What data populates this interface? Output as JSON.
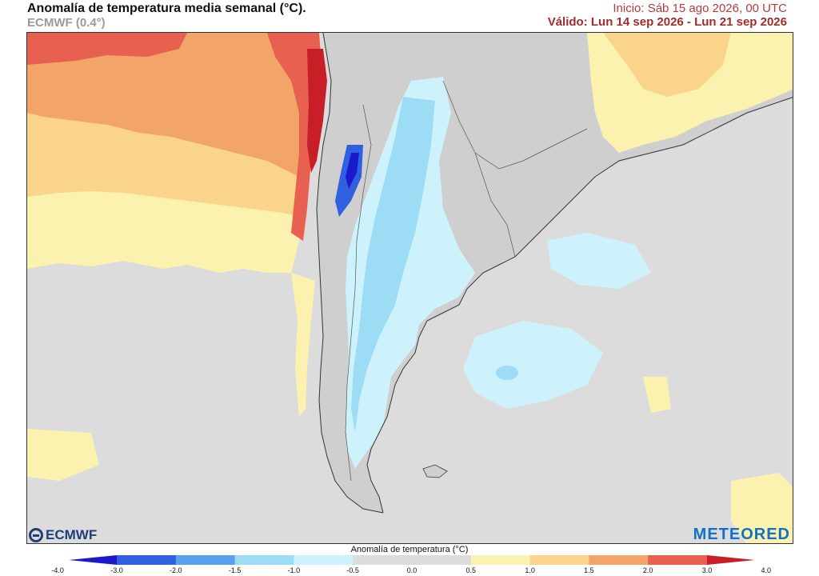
{
  "header": {
    "title": "Anomalía de temperatura media semanal (°C).",
    "model": "ECMWF (0.4°)",
    "start": "Inicio: Sáb 15 ago 2026, 00 UTC",
    "valid": "Válido: Lun 14 sep 2026 - Lun 21 sep 2026"
  },
  "logos": {
    "left": "ECMWF",
    "right": "METEORED"
  },
  "legend": {
    "title": "Anomalía de temperatura (°C)",
    "ticks": [
      "-4.0",
      "-3.0",
      "-2.0",
      "-1.5",
      "-1.0",
      "-0.5",
      "0.0",
      "0.5",
      "1.0",
      "1.5",
      "2.0",
      "3.0",
      "4.0"
    ],
    "colors": [
      "#1a1acc",
      "#2e60e0",
      "#5aa0ee",
      "#9ddcf5",
      "#cdf2fb",
      "#dcdcdc",
      "#dcdcdc",
      "#fbf2b0",
      "#f9d48a",
      "#f3a468",
      "#e8604f",
      "#c81e28"
    ]
  },
  "colors": {
    "ocean_neutral": "#dcdcdc",
    "land": "#cfcfcf"
  }
}
